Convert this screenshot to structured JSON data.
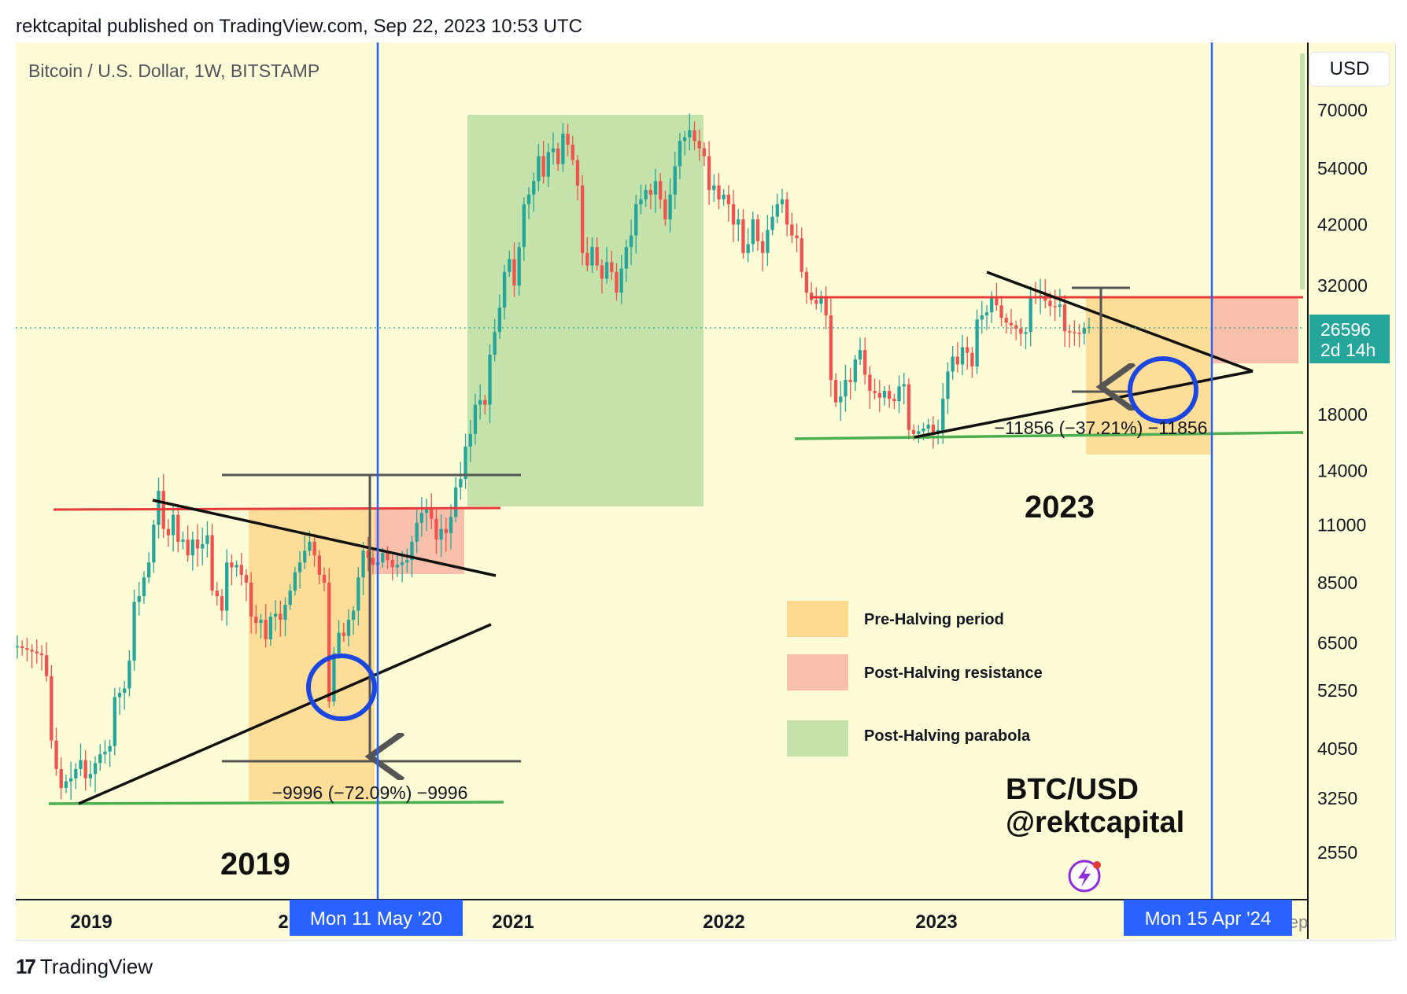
{
  "header": {
    "published_line": "rektcapital published on TradingView.com, Sep 22, 2023 10:53 UTC"
  },
  "chart_title": "Bitcoin / U.S. Dollar, 1W, BITSTAMP",
  "currency_button": "USD",
  "footer": {
    "brand": "TradingView",
    "logo_glyph": "17"
  },
  "colors": {
    "background": "#fdfcd6",
    "pre_halving": "#fdd990",
    "post_halving_resistance": "#f8c0ab",
    "post_halving_parabola": "#c4e2a9",
    "candle_up": "#26a69a",
    "candle_down": "#ef5350",
    "halving_line": "#2962ff",
    "resistance": "#e63b3b",
    "support": "#4caf50",
    "circle": "#1b46e0"
  },
  "chart_data": {
    "type": "candlestick",
    "symbol": "BTC/USD",
    "timeframe": "1W",
    "exchange": "BITSTAMP",
    "y_scale": "log",
    "y_ticks": [
      70000,
      54000,
      42000,
      32000,
      18000,
      14000,
      11000,
      8500,
      6500,
      5250,
      4050,
      3250,
      2550
    ],
    "x_ticks": [
      "2019",
      "2021",
      "2022",
      "2023"
    ],
    "x_tick_partial_labels": [
      "2",
      "2",
      "ep"
    ],
    "last_price": {
      "value": "26596",
      "countdown": "2d 14h"
    },
    "halving_dates": [
      "Mon 11 May '20",
      "Mon 15 Apr '24"
    ],
    "annotations": {
      "label_2019": "2019",
      "label_2023": "2023",
      "measure_2019": "−9996 (−72.09%) −9996",
      "measure_2023": "−11856 (−37.21%) −11856",
      "watermark_line1": "BTC/USD",
      "watermark_line2": "@rektcapital"
    },
    "legend": [
      {
        "label": "Pre-Halving period",
        "color": "#fdd990"
      },
      {
        "label": "Post-Halving resistance",
        "color": "#f8c0ab"
      },
      {
        "label": "Post-Halving parabola",
        "color": "#c4e2a9"
      }
    ],
    "legend_position": "lower-center-right",
    "weekly_closes_approx": [
      6400,
      6350,
      6300,
      6250,
      6200,
      6150,
      5600,
      4200,
      3700,
      3400,
      3500,
      3550,
      3700,
      3850,
      3550,
      3620,
      3800,
      3950,
      4000,
      4100,
      5100,
      5200,
      5300,
      6000,
      7800,
      8000,
      8700,
      9300,
      11000,
      12800,
      10800,
      10500,
      11500,
      10200,
      10300,
      9600,
      10300,
      9900,
      10100,
      10500,
      8200,
      8000,
      7500,
      9300,
      9100,
      9200,
      8800,
      8500,
      7300,
      7100,
      7200,
      6600,
      7300,
      7400,
      7200,
      7700,
      8200,
      8900,
      9300,
      9800,
      10200,
      9600,
      8800,
      8500,
      5000,
      6200,
      6800,
      6700,
      7200,
      7500,
      8700,
      9800,
      9500,
      9200,
      9300,
      9700,
      9400,
      9100,
      9200,
      9300,
      9400,
      10200,
      11100,
      11600,
      11800,
      11300,
      10300,
      10800,
      10600,
      11400,
      13000,
      13500,
      15600,
      16500,
      18800,
      19200,
      18800,
      23500,
      26000,
      29000,
      34000,
      36000,
      32000,
      38000,
      46000,
      48000,
      51000,
      57000,
      52000,
      58000,
      59000,
      55000,
      63000,
      60000,
      56000,
      50000,
      37000,
      35000,
      38000,
      35000,
      33000,
      35500,
      34000,
      31000,
      34500,
      38000,
      40000,
      46000,
      47000,
      49000,
      48000,
      51000,
      47000,
      43000,
      48000,
      54500,
      61000,
      62000,
      64000,
      61000,
      59000,
      57000,
      49000,
      50000,
      47000,
      48000,
      46000,
      42000,
      43000,
      37000,
      38500,
      43000,
      39000,
      37000,
      41000,
      43500,
      46000,
      47000,
      42000,
      40000,
      39500,
      34000,
      31000,
      30000,
      29500,
      30500,
      28000,
      21000,
      19000,
      19500,
      21000,
      20800,
      23000,
      24000,
      21500,
      20000,
      19800,
      19400,
      20000,
      19300,
      19100,
      20400,
      20600,
      16800,
      16500,
      16700,
      16900,
      17200,
      16600,
      16800,
      19300,
      21800,
      23300,
      22500,
      24300,
      23700,
      22300,
      27500,
      28000,
      28400,
      30400,
      29300,
      27700,
      27100,
      26800,
      26400,
      25800,
      26000,
      30500,
      30200,
      30600,
      29900,
      29200,
      29100,
      29400,
      26100,
      26000,
      25900,
      25800,
      26500,
      26596
    ]
  }
}
